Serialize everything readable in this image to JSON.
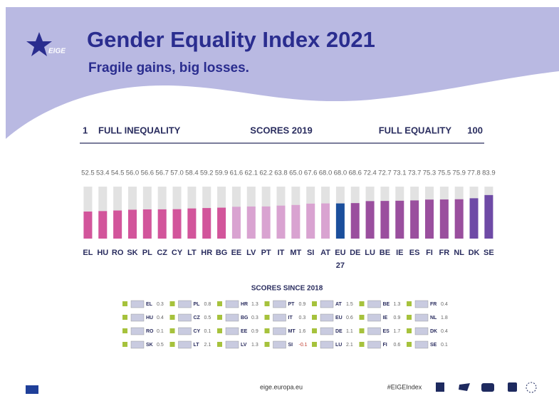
{
  "header": {
    "logo": "EIGE"
  },
  "chart_data": {
    "type": "bar",
    "title": "Gender Equality Index 2021",
    "subtitle": "Fragile gains, big losses.",
    "axis_title": "SCORES 2019",
    "low_label": "FULL INEQUALITY",
    "high_label": "FULL EQUALITY",
    "ylim": [
      1,
      100
    ],
    "categories": [
      "EL",
      "HU",
      "RO",
      "SK",
      "PL",
      "CZ",
      "CY",
      "LT",
      "HR",
      "BG",
      "EE",
      "LV",
      "PT",
      "IT",
      "MT",
      "SI",
      "AT",
      "EU 27",
      "DE",
      "LU",
      "BE",
      "IE",
      "ES",
      "FI",
      "FR",
      "NL",
      "DK",
      "SE"
    ],
    "values": [
      52.5,
      53.4,
      54.5,
      56.0,
      56.6,
      56.7,
      57.0,
      58.4,
      59.2,
      59.9,
      61.6,
      62.1,
      62.2,
      63.8,
      65.0,
      67.6,
      68.0,
      68.0,
      68.6,
      72.4,
      72.7,
      73.1,
      73.7,
      75.3,
      75.5,
      75.9,
      77.8,
      83.9
    ],
    "value_labels": [
      "52.5",
      "53.4",
      "54.5",
      "56.0",
      "56.6",
      "56.7",
      "57.0",
      "58.4",
      "59.2",
      "59.9",
      "61.6",
      "62.1",
      "62.2",
      "63.8",
      "65.0",
      "67.6",
      "68.0",
      "68.0",
      "68.6",
      "72.4",
      "72.7",
      "73.1",
      "73.7",
      "75.3",
      "75.5",
      "75.9",
      "77.8",
      "83.9"
    ],
    "colors": [
      "#d2559b",
      "#d2559b",
      "#d2559b",
      "#d2559b",
      "#d2559b",
      "#d2559b",
      "#d2559b",
      "#d2559b",
      "#d2559b",
      "#d2559b",
      "#d9a3d1",
      "#d9a3d1",
      "#d9a3d1",
      "#d9a3d1",
      "#d9a3d1",
      "#d9a3d1",
      "#d9a3d1",
      "#1b4f9c",
      "#9a4f9e",
      "#9a4f9e",
      "#9a4f9e",
      "#9a4f9e",
      "#9a4f9e",
      "#9a4f9e",
      "#9a4f9e",
      "#9a4f9e",
      "#6e4aa6",
      "#6e4aa6"
    ]
  },
  "changes": {
    "title": "SCORES SINCE 2018",
    "columns": [
      [
        {
          "country": "EL",
          "value": 0.3
        },
        {
          "country": "HU",
          "value": 0.4
        },
        {
          "country": "RO",
          "value": 0.1
        },
        {
          "country": "SK",
          "value": 0.5
        }
      ],
      [
        {
          "country": "PL",
          "value": 0.8
        },
        {
          "country": "CZ",
          "value": 0.5
        },
        {
          "country": "CY",
          "value": 0.1
        },
        {
          "country": "LT",
          "value": 2.1
        }
      ],
      [
        {
          "country": "HR",
          "value": 1.3
        },
        {
          "country": "BG",
          "value": 0.3
        },
        {
          "country": "EE",
          "value": 0.9
        },
        {
          "country": "LV",
          "value": 1.3
        }
      ],
      [
        {
          "country": "PT",
          "value": 0.9
        },
        {
          "country": "IT",
          "value": 0.3
        },
        {
          "country": "MT",
          "value": 1.6
        },
        {
          "country": "SI",
          "value": -0.1
        }
      ],
      [
        {
          "country": "AT",
          "value": 1.5
        },
        {
          "country": "EU",
          "value": 0.6
        },
        {
          "country": "DE",
          "value": 1.1
        },
        {
          "country": "LU",
          "value": 2.1
        }
      ],
      [
        {
          "country": "BE",
          "value": 1.3
        },
        {
          "country": "IE",
          "value": 0.9
        },
        {
          "country": "ES",
          "value": 1.7
        },
        {
          "country": "FI",
          "value": 0.6
        }
      ],
      [
        {
          "country": "FR",
          "value": 0.4
        },
        {
          "country": "NL",
          "value": 1.8
        },
        {
          "country": "DK",
          "value": 0.4
        },
        {
          "country": "SE",
          "value": 0.1
        }
      ]
    ]
  },
  "footer": {
    "url": "eige.europa.eu",
    "hashtag": "#EIGEIndex"
  }
}
